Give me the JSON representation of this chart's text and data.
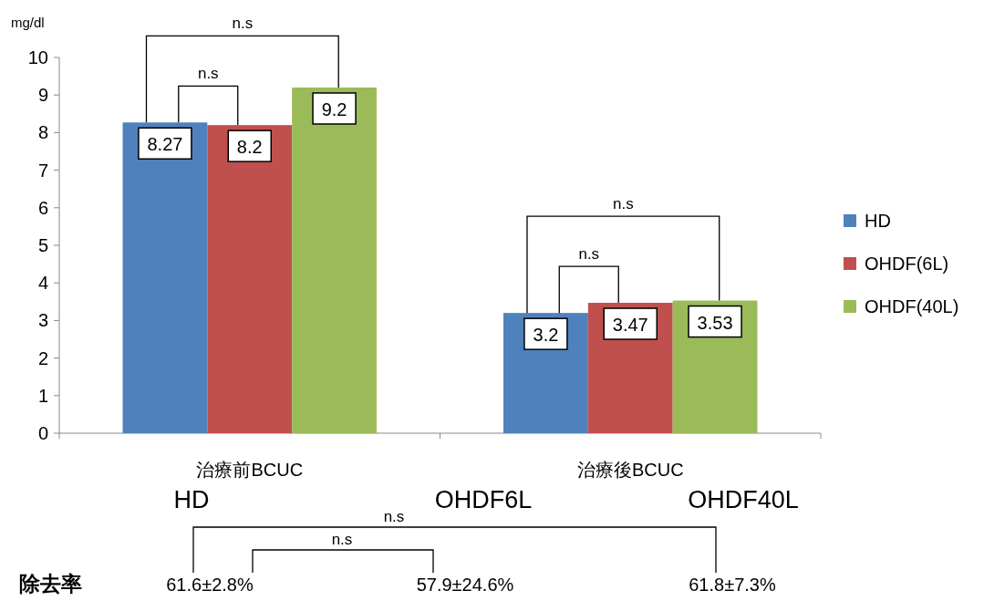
{
  "chart_data": {
    "type": "bar",
    "ylabel": "mg/dl",
    "categories": [
      "治療前BCUC",
      "治療後BCUC"
    ],
    "series": [
      {
        "name": "HD",
        "color": "#4f81bd",
        "values": [
          8.27,
          3.2
        ]
      },
      {
        "name": "OHDF(6L)",
        "color": "#c0504d",
        "values": [
          8.2,
          3.47
        ]
      },
      {
        "name": "OHDF(40L)",
        "color": "#9bbb59",
        "values": [
          9.2,
          3.53
        ]
      }
    ],
    "ylim": [
      0,
      10
    ],
    "yticks": [
      0,
      1,
      2,
      3,
      4,
      5,
      6,
      7,
      8,
      9,
      10
    ],
    "data_labels": true,
    "legend": "right",
    "annotations": [
      "n.s",
      "n.s",
      "n.s",
      "n.s",
      "HD",
      "OHDF6L",
      "OHDF40L",
      "n.s",
      "n.s",
      "除去率",
      "61.6±2.8%",
      "57.9±24.6%",
      "61.8±7.3%"
    ]
  }
}
